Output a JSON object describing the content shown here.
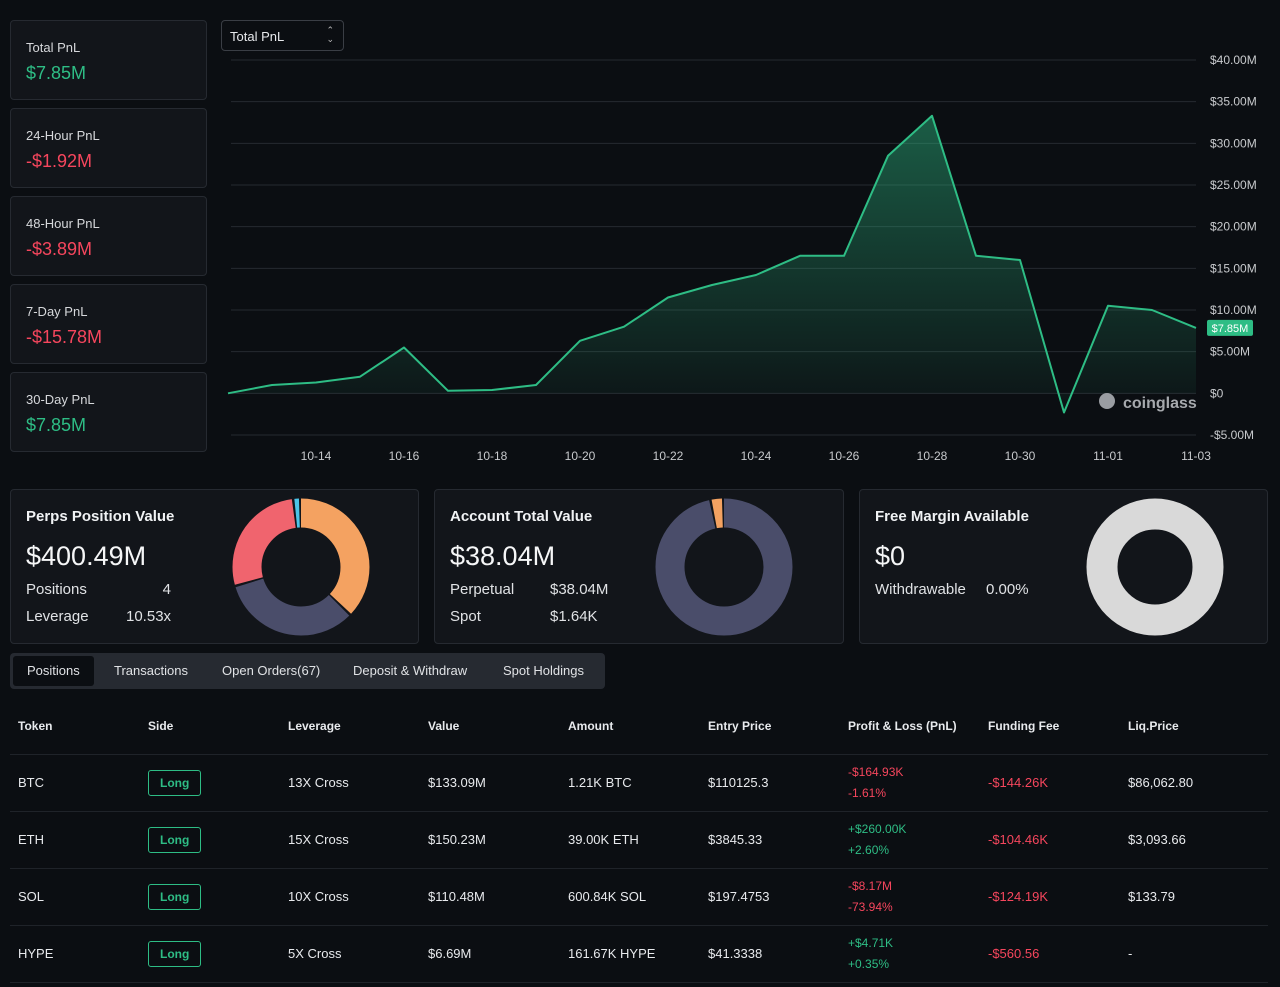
{
  "stats": [
    {
      "label": "Total PnL",
      "value": "$7.85M",
      "color": "#2ebd85"
    },
    {
      "label": "24-Hour PnL",
      "value": "-$1.92M",
      "color": "#f6465d"
    },
    {
      "label": "48-Hour PnL",
      "value": "-$3.89M",
      "color": "#f6465d"
    },
    {
      "label": "7-Day PnL",
      "value": "-$15.78M",
      "color": "#f6465d"
    },
    {
      "label": "30-Day PnL",
      "value": "$7.85M",
      "color": "#2ebd85"
    }
  ],
  "chart_selector": "Total PnL",
  "chart_data": {
    "type": "area",
    "x": [
      "10-12",
      "10-13",
      "10-14",
      "10-15",
      "10-16",
      "10-17",
      "10-18",
      "10-19",
      "10-20",
      "10-21",
      "10-22",
      "10-23",
      "10-24",
      "10-25",
      "10-26",
      "10-27",
      "10-28",
      "10-29",
      "10-30",
      "10-31",
      "11-01",
      "11-02",
      "11-03"
    ],
    "values": [
      0,
      1.0,
      1.3,
      2.0,
      5.5,
      0.3,
      0.4,
      1.0,
      6.3,
      8.0,
      11.5,
      13.0,
      14.2,
      16.5,
      16.5,
      28.5,
      33.3,
      16.5,
      16.0,
      -2.3,
      10.5,
      10.0,
      7.85
    ],
    "ylim": [
      -5,
      40
    ],
    "yticks": [
      {
        "value": -5,
        "label": "-$5.00M"
      },
      {
        "value": 0,
        "label": "$0"
      },
      {
        "value": 5,
        "label": "$5.00M"
      },
      {
        "value": 10,
        "label": "$10.00M"
      },
      {
        "value": 15,
        "label": "$15.00M"
      },
      {
        "value": 20,
        "label": "$20.00M"
      },
      {
        "value": 25,
        "label": "$25.00M"
      },
      {
        "value": 30,
        "label": "$30.00M"
      },
      {
        "value": 35,
        "label": "$35.00M"
      },
      {
        "value": 40,
        "label": "$40.00M"
      }
    ],
    "xticks": [
      "10-14",
      "10-16",
      "10-18",
      "10-20",
      "10-22",
      "10-24",
      "10-26",
      "10-28",
      "10-30",
      "11-01",
      "11-03"
    ],
    "color": "#2ebd85",
    "grid": true,
    "last_label": "$7.85M",
    "watermark": "coinglass"
  },
  "cards": [
    {
      "title": "Perps Position Value",
      "value": "$400.49M",
      "rows": [
        [
          "Positions",
          "4"
        ],
        [
          "Leverage",
          "10.53x"
        ]
      ],
      "donut": {
        "values": [
          150.23,
          133.09,
          110.48,
          6.69
        ],
        "colors": [
          "#f4a261",
          "#4a4d6a",
          "#f0646e",
          "#4cc4e8"
        ]
      }
    },
    {
      "title": "Account Total Value",
      "value": "$38.04M",
      "rows": [
        [
          "Perpetual",
          "$38.04M"
        ],
        [
          "Spot",
          "$1.64K"
        ]
      ],
      "donut": {
        "values": [
          97,
          3
        ],
        "colors": [
          "#4a4d6a",
          "#f4a261"
        ]
      }
    },
    {
      "title": "Free Margin Available",
      "value": "$0",
      "rows": [
        [
          "Withdrawable",
          "0.00%"
        ]
      ],
      "donut": {
        "values": [
          100
        ],
        "colors": [
          "#d9d9d9"
        ]
      }
    }
  ],
  "tabs": {
    "items": [
      "Positions",
      "Transactions",
      "Open Orders(67)",
      "Deposit & Withdraw",
      "Spot Holdings"
    ],
    "active": 0
  },
  "table": {
    "headers": [
      "Token",
      "Side",
      "Leverage",
      "Value",
      "Amount",
      "Entry Price",
      "Profit & Loss (PnL)",
      "Funding Fee",
      "Liq.Price"
    ],
    "rows": [
      {
        "token": "BTC",
        "side": "Long",
        "leverage": "13X Cross",
        "value": "$133.09M",
        "amount": "1.21K BTC",
        "entry": "$110125.3",
        "pnl": "-$164.93K",
        "pnl_pct": "-1.61%",
        "funding": "-$144.26K",
        "liq": "$86,062.80"
      },
      {
        "token": "ETH",
        "side": "Long",
        "leverage": "15X Cross",
        "value": "$150.23M",
        "amount": "39.00K ETH",
        "entry": "$3845.33",
        "pnl": "+$260.00K",
        "pnl_pct": "+2.60%",
        "funding": "-$104.46K",
        "liq": "$3,093.66"
      },
      {
        "token": "SOL",
        "side": "Long",
        "leverage": "10X Cross",
        "value": "$110.48M",
        "amount": "600.84K SOL",
        "entry": "$197.4753",
        "pnl": "-$8.17M",
        "pnl_pct": "-73.94%",
        "funding": "-$124.19K",
        "liq": "$133.79"
      },
      {
        "token": "HYPE",
        "side": "Long",
        "leverage": "5X Cross",
        "value": "$6.69M",
        "amount": "161.67K HYPE",
        "entry": "$41.3338",
        "pnl": "+$4.71K",
        "pnl_pct": "+0.35%",
        "funding": "-$560.56",
        "liq": "-"
      }
    ]
  }
}
